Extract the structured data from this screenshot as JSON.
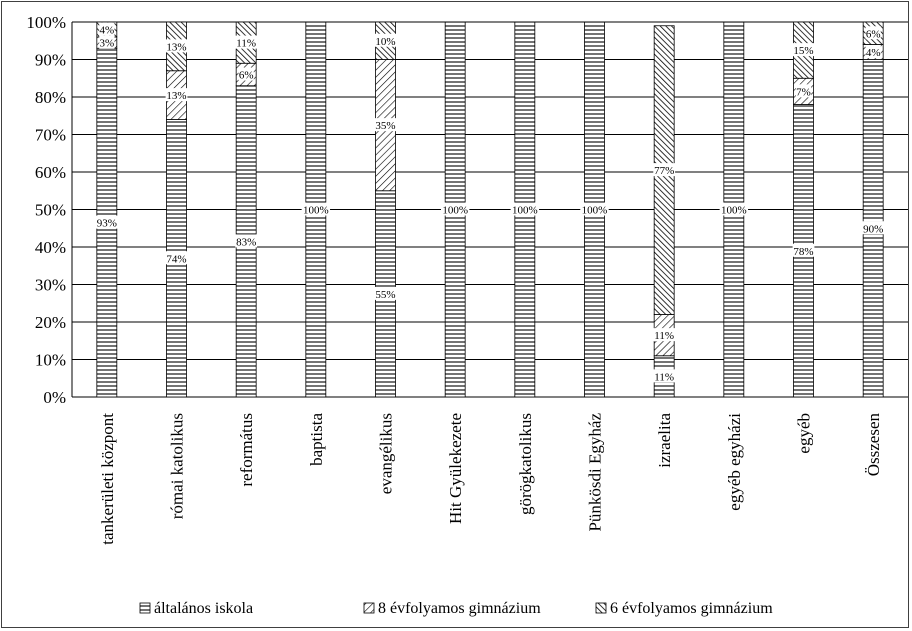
{
  "chart_data": {
    "type": "bar",
    "stacked": true,
    "percent": true,
    "categories": [
      "tankerületi központ",
      "római katolikus",
      "református",
      "baptista",
      "evangélikus",
      "Hit Gyülekezete",
      "görögkatolikus",
      "Pünkösdi Egyház",
      "izraelita",
      "egyéb egyházi",
      "egyéb",
      "Összesen"
    ],
    "series": [
      {
        "name": "általános iskola",
        "values": [
          93,
          74,
          83,
          100,
          55,
          100,
          100,
          100,
          11,
          100,
          78,
          90
        ],
        "labels": [
          "93%",
          "74%",
          "83%",
          "100%",
          "55%",
          "100%",
          "100%",
          "100%",
          "11%",
          "100%",
          "78%",
          "90%"
        ],
        "pattern": "horizontal-lines"
      },
      {
        "name": "8 évfolyamos gimnázium",
        "values": [
          3,
          13,
          6,
          0,
          35,
          0,
          0,
          0,
          11,
          0,
          7,
          4
        ],
        "labels": [
          "3%",
          "13%",
          "6%",
          "",
          "35%",
          "",
          "",
          "",
          "11%",
          "",
          "7%",
          "4%"
        ],
        "pattern": "diagonal-hatch"
      },
      {
        "name": "6 évfolyamos gimnázium",
        "values": [
          4,
          13,
          11,
          0,
          10,
          0,
          0,
          0,
          77,
          0,
          15,
          6
        ],
        "labels": [
          "4%",
          "13%",
          "11%",
          "",
          "10%",
          "",
          "",
          "",
          "77%",
          "",
          "15%",
          "6%"
        ],
        "pattern": "dense-cross-hatch"
      }
    ],
    "y_ticks": [
      "0%",
      "10%",
      "20%",
      "30%",
      "40%",
      "50%",
      "60%",
      "70%",
      "80%",
      "90%",
      "100%"
    ],
    "ylim": [
      0,
      100
    ],
    "grid": true,
    "legend": "bottom",
    "colors": {
      "ink": "#000000",
      "grid": "#000000",
      "fill": "#ffffff"
    }
  }
}
